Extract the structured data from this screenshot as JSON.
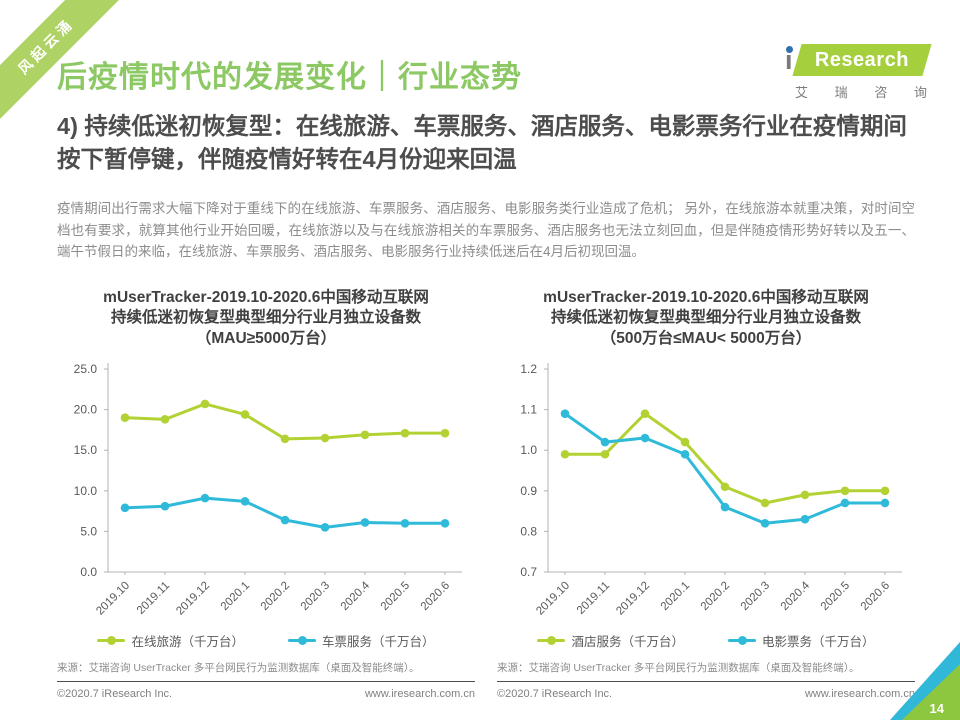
{
  "ribbon": {
    "text": "风起云涌"
  },
  "header": {
    "title": "后疫情时代的发展变化｜行业态势"
  },
  "logo": {
    "i": "i",
    "wordmark": "Research",
    "cn_chars": [
      "艾",
      "瑞",
      "咨",
      "询"
    ]
  },
  "section": {
    "heading": "4) 持续低迷初恢复型：在线旅游、车票服务、酒店服务、电影票务行业在疫情期间按下暂停键，伴随疫情好转在4月份迎来回温"
  },
  "body": {
    "paragraph": "疫情期间出行需求大幅下降对于重线下的在线旅游、车票服务、酒店服务、电影服务类行业造成了危机； 另外，在线旅游本就重决策，对时间空档也有要求，就算其他行业开始回暖，在线旅游以及与在线旅游相关的车票服务、酒店服务也无法立刻回血，但是伴随疫情形势好转以及五一、端午节假日的来临，在线旅游、车票服务、酒店服务、电影服务行业持续低迷后在4月后初现回温。"
  },
  "chart_data": [
    {
      "type": "line",
      "title_lines": [
        "mUserTracker-2019.10-2020.6中国移动互联网",
        "持续低迷初恢复型典型细分行业月独立设备数",
        "（MAU≥5000万台）"
      ],
      "categories": [
        "2019.10",
        "2019.11",
        "2019.12",
        "2020.1",
        "2020.2",
        "2020.3",
        "2020.4",
        "2020.5",
        "2020.6"
      ],
      "series": [
        {
          "name": "在线旅游（千万台）",
          "color": "#b2d234",
          "values": [
            19.0,
            18.8,
            20.7,
            19.4,
            16.4,
            16.5,
            16.9,
            17.1,
            17.1
          ]
        },
        {
          "name": "车票服务（千万台）",
          "color": "#2fbad9",
          "values": [
            7.9,
            8.1,
            9.1,
            8.7,
            6.4,
            5.5,
            6.1,
            6.0,
            6.0
          ]
        }
      ],
      "xlabel": "",
      "ylabel": "",
      "ylim": [
        0,
        25
      ],
      "yticks": [
        0,
        5,
        10,
        15,
        20,
        25
      ],
      "grid": false,
      "legend_position": "bottom",
      "source": "来源：艾瑞咨询 UserTracker 多平台网民行为监测数据库（桌面及智能终端）。"
    },
    {
      "type": "line",
      "title_lines": [
        "mUserTracker-2019.10-2020.6中国移动互联网",
        "持续低迷初恢复型典型细分行业月独立设备数",
        "（500万台≤MAU< 5000万台）"
      ],
      "categories": [
        "2019.10",
        "2019.11",
        "2019.12",
        "2020.1",
        "2020.2",
        "2020.3",
        "2020.4",
        "2020.5",
        "2020.6"
      ],
      "series": [
        {
          "name": "酒店服务（千万台）",
          "color": "#b2d234",
          "values": [
            0.99,
            0.99,
            1.09,
            1.02,
            0.91,
            0.87,
            0.89,
            0.9,
            0.9
          ]
        },
        {
          "name": "电影票务（千万台）",
          "color": "#2fbad9",
          "values": [
            1.09,
            1.02,
            1.03,
            0.99,
            0.86,
            0.82,
            0.83,
            0.87,
            0.87
          ]
        }
      ],
      "xlabel": "",
      "ylabel": "",
      "ylim": [
        0.7,
        1.2
      ],
      "yticks": [
        0.7,
        0.8,
        0.9,
        1.0,
        1.1,
        1.2
      ],
      "grid": false,
      "legend_position": "bottom",
      "source": "来源：艾瑞咨询 UserTracker 多平台网民行为监测数据库（桌面及智能终端）。"
    }
  ],
  "footer": {
    "copyright": "©2020.7 iResearch Inc.",
    "website": "www.iresearch.com.cn"
  },
  "page": {
    "number": "14"
  }
}
